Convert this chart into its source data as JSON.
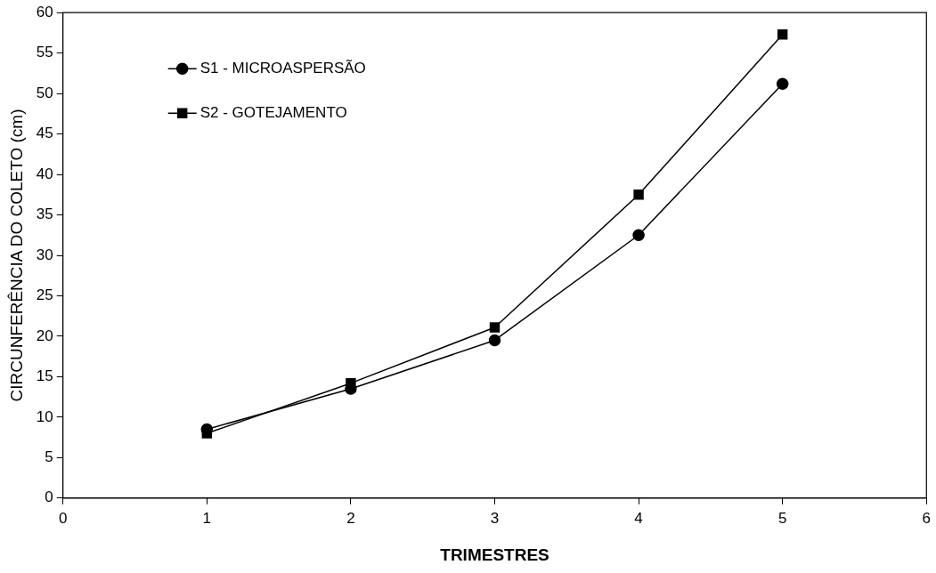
{
  "chart_data": {
    "type": "line",
    "xlabel": "TRIMESTRES",
    "ylabel": "CIRCUNFERÊNCIA DO COLETO (cm)",
    "x": [
      1,
      2,
      3,
      4,
      5
    ],
    "series": [
      {
        "name": "S1 - MICROASPERSÃO",
        "color": "#000000",
        "marker": "circle",
        "values": [
          8.5,
          13.5,
          19.5,
          32.5,
          51.2
        ]
      },
      {
        "name": "S2 - GOTEJAMENTO",
        "color": "#000000",
        "marker": "square",
        "values": [
          8.0,
          14.2,
          21.1,
          37.5,
          57.3
        ]
      }
    ],
    "xlim": [
      0,
      6
    ],
    "xticks": [
      0,
      1,
      2,
      3,
      4,
      5,
      6
    ],
    "ylim": [
      0,
      60
    ],
    "yticks": [
      0,
      5,
      10,
      15,
      20,
      25,
      30,
      35,
      40,
      45,
      50,
      55,
      60
    ],
    "grid": false,
    "legend": "top left",
    "line_style": "solid"
  }
}
